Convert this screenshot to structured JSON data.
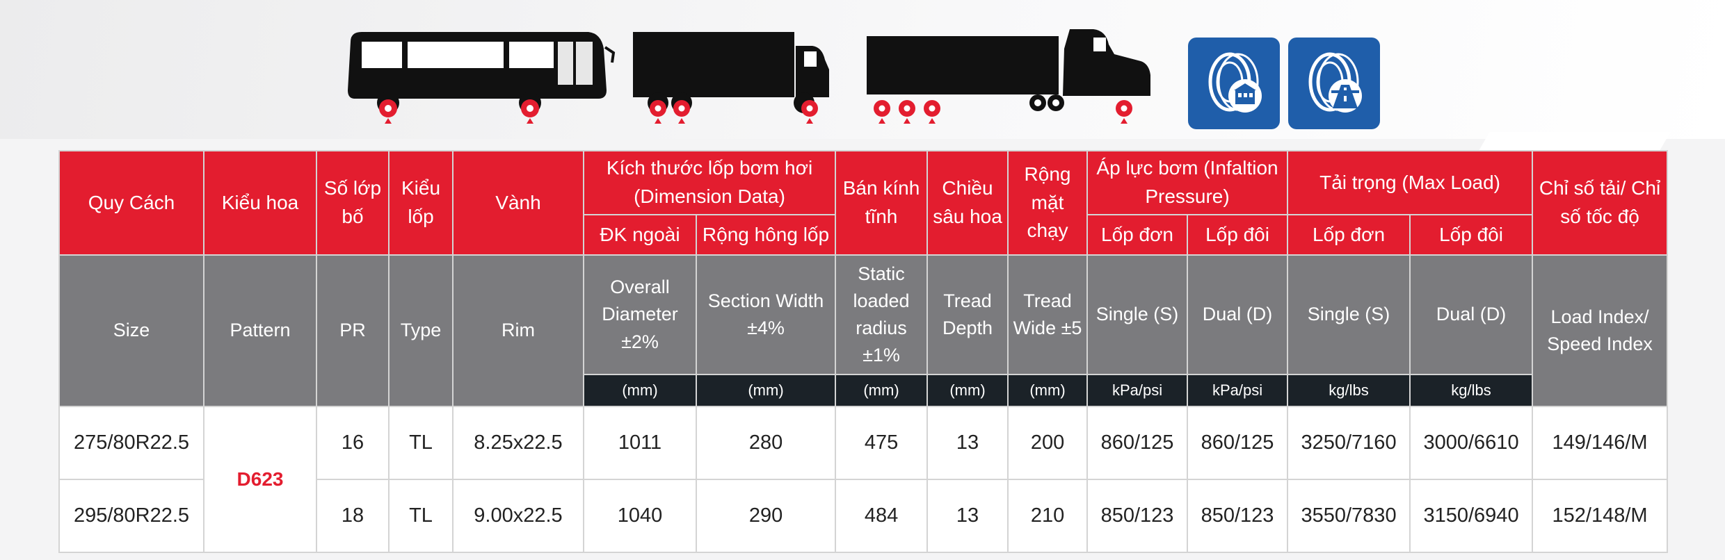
{
  "icons": [
    "bus-icon",
    "box-truck-icon",
    "semi-truck-icon",
    "urban-tire-icon",
    "highway-tire-icon"
  ],
  "colors": {
    "header_red": "#e31d2f",
    "header_gray": "#7b7b7e",
    "unit_dark": "#1b2228",
    "pattern_red": "#e31d2f",
    "badge_blue": "#1f5eaa"
  },
  "header_vi": {
    "size": "Quy Cách",
    "pattern": "Kiểu hoa",
    "pr": "Số lớp bố",
    "type": "Kiểu lốp",
    "rim": "Vành",
    "dimension": "Kích thước lốp bơm hơi (Dimension Data)",
    "overall": "ĐK ngoài",
    "section": "Rộng hông lốp",
    "static": "Bán kính tĩnh",
    "depth": "Chiều sâu hoa",
    "tread": "Rộng mặt chạy",
    "pressure": "Áp lực bơm (Infaltion Pressure)",
    "pressure_single": "Lốp đơn",
    "pressure_dual": "Lốp đôi",
    "load": "Tải trọng (Max Load)",
    "load_single": "Lốp đơn",
    "load_dual": "Lốp đôi",
    "index": "Chỉ số tải/ Chỉ số tốc độ"
  },
  "header_en": {
    "size": "Size",
    "pattern": "Pattern",
    "pr": "PR",
    "type": "Type",
    "rim": "Rim",
    "overall": "Overall Diameter ±2%",
    "section": "Section Width ±4%",
    "static": "Static loaded radius ±1%",
    "depth": "Tread Depth",
    "tread": "Tread Wide ±5",
    "pressure_single": "Single (S)",
    "pressure_dual": "Dual (D)",
    "load_single": "Single (S)",
    "load_dual": "Dual (D)",
    "index": "Load Index/ Speed Index"
  },
  "units": [
    "(mm)",
    "(mm)",
    "(mm)",
    "(mm)",
    "(mm)",
    "kPa/psi",
    "kPa/psi",
    "kg/lbs",
    "kg/lbs"
  ],
  "pattern": "D623",
  "rows": [
    {
      "size": "275/80R22.5",
      "pr": "16",
      "type": "TL",
      "rim": "8.25x22.5",
      "overall": "1011",
      "section": "280",
      "static": "475",
      "depth": "13",
      "tread": "200",
      "p_single": "860/125",
      "p_dual": "860/125",
      "l_single": "3250/7160",
      "l_dual": "3000/6610",
      "index": "149/146/M"
    },
    {
      "size": "295/80R22.5",
      "pr": "18",
      "type": "TL",
      "rim": "9.00x22.5",
      "overall": "1040",
      "section": "290",
      "static": "484",
      "depth": "13",
      "tread": "210",
      "p_single": "850/123",
      "p_dual": "850/123",
      "l_single": "3550/7830",
      "l_dual": "3150/6940",
      "index": "152/148/M"
    }
  ]
}
